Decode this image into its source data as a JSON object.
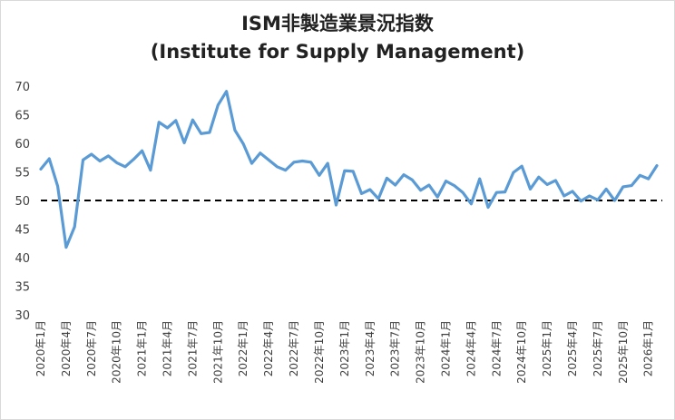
{
  "chart_data": {
    "type": "line",
    "title": "ISM非製造業景況指数",
    "subtitle": "(Institute for Supply Management)",
    "xlabel": "",
    "ylabel": "",
    "ylim": [
      30,
      70
    ],
    "yticks": [
      30,
      35,
      40,
      45,
      50,
      55,
      60,
      65,
      70
    ],
    "grid": false,
    "legend": "none",
    "reference_line": {
      "value": 50,
      "style": "dashed",
      "color": "#000000"
    },
    "line_color": "#5b9bd5",
    "x_tick_labels": [
      "2020年1月",
      "2020年4月",
      "2020年7月",
      "2020年10月",
      "2021年1月",
      "2021年4月",
      "2021年7月",
      "2021年10月",
      "2022年1月",
      "2022年4月",
      "2022年7月",
      "2022年10月",
      "2023年1月",
      "2023年4月",
      "2023年7月",
      "2023年10月",
      "2024年1月",
      "2024年4月",
      "2024年7月",
      "2024年10月",
      "2025年1月",
      "2025年4月",
      "2025年7月",
      "2025年10月",
      "2026年1月"
    ],
    "series": [
      {
        "values": [
          55.5,
          57.3,
          52.5,
          41.8,
          45.4,
          57.1,
          58.1,
          56.9,
          57.8,
          56.6,
          55.9,
          57.2,
          58.7,
          55.3,
          63.7,
          62.7,
          64.0,
          60.1,
          64.1,
          61.7,
          61.9,
          66.7,
          69.1,
          62.3,
          59.9,
          56.5,
          58.3,
          57.1,
          55.9,
          55.3,
          56.7,
          56.9,
          56.7,
          54.4,
          56.5,
          49.2,
          55.2,
          55.1,
          51.2,
          51.9,
          50.3,
          53.9,
          52.7,
          54.5,
          53.6,
          51.8,
          52.7,
          50.6,
          53.4,
          52.6,
          51.4,
          49.4,
          53.8,
          48.8,
          51.4,
          51.5,
          54.9,
          56.0,
          52.0,
          54.1,
          52.8,
          53.5,
          50.8,
          51.6,
          49.9,
          50.8,
          50.1,
          52.0,
          50.0,
          52.4,
          52.6,
          54.4,
          53.8,
          56.1
        ]
      }
    ]
  }
}
